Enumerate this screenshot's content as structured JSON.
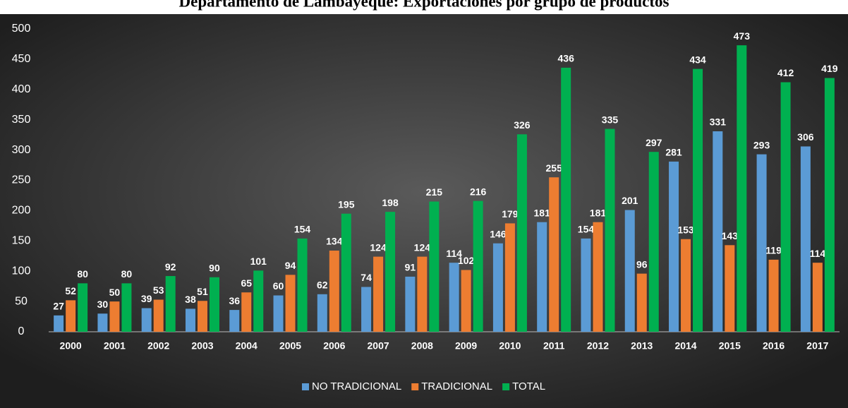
{
  "chart_data": {
    "type": "bar",
    "title": "Departamento de Lambayeque: Exportaciones por grupo de productos",
    "categories": [
      "2000",
      "2001",
      "2002",
      "2003",
      "2004",
      "2005",
      "2006",
      "2007",
      "2008",
      "2009",
      "2010",
      "2011",
      "2012",
      "2013",
      "2014",
      "2015",
      "2016",
      "2017"
    ],
    "series": [
      {
        "name": "NO TRADICIONAL",
        "color": "#5b9bd5",
        "values": [
          27,
          30,
          39,
          38,
          36,
          60,
          62,
          74,
          91,
          114,
          146,
          181,
          154,
          201,
          281,
          331,
          293,
          306
        ]
      },
      {
        "name": "TRADICIONAL",
        "color": "#ed7d31",
        "values": [
          52,
          50,
          53,
          51,
          65,
          94,
          134,
          124,
          124,
          102,
          179,
          255,
          181,
          96,
          153,
          143,
          119,
          114
        ]
      },
      {
        "name": "TOTAL",
        "color": "#00b050",
        "values": [
          80,
          80,
          92,
          90,
          101,
          154,
          195,
          198,
          215,
          216,
          326,
          436,
          335,
          297,
          434,
          473,
          412,
          419
        ]
      }
    ],
    "ylim": [
      0,
      500
    ],
    "yticks": [
      0,
      50,
      100,
      150,
      200,
      250,
      300,
      350,
      400,
      450,
      500
    ],
    "grid": false,
    "legend": "bottom"
  }
}
